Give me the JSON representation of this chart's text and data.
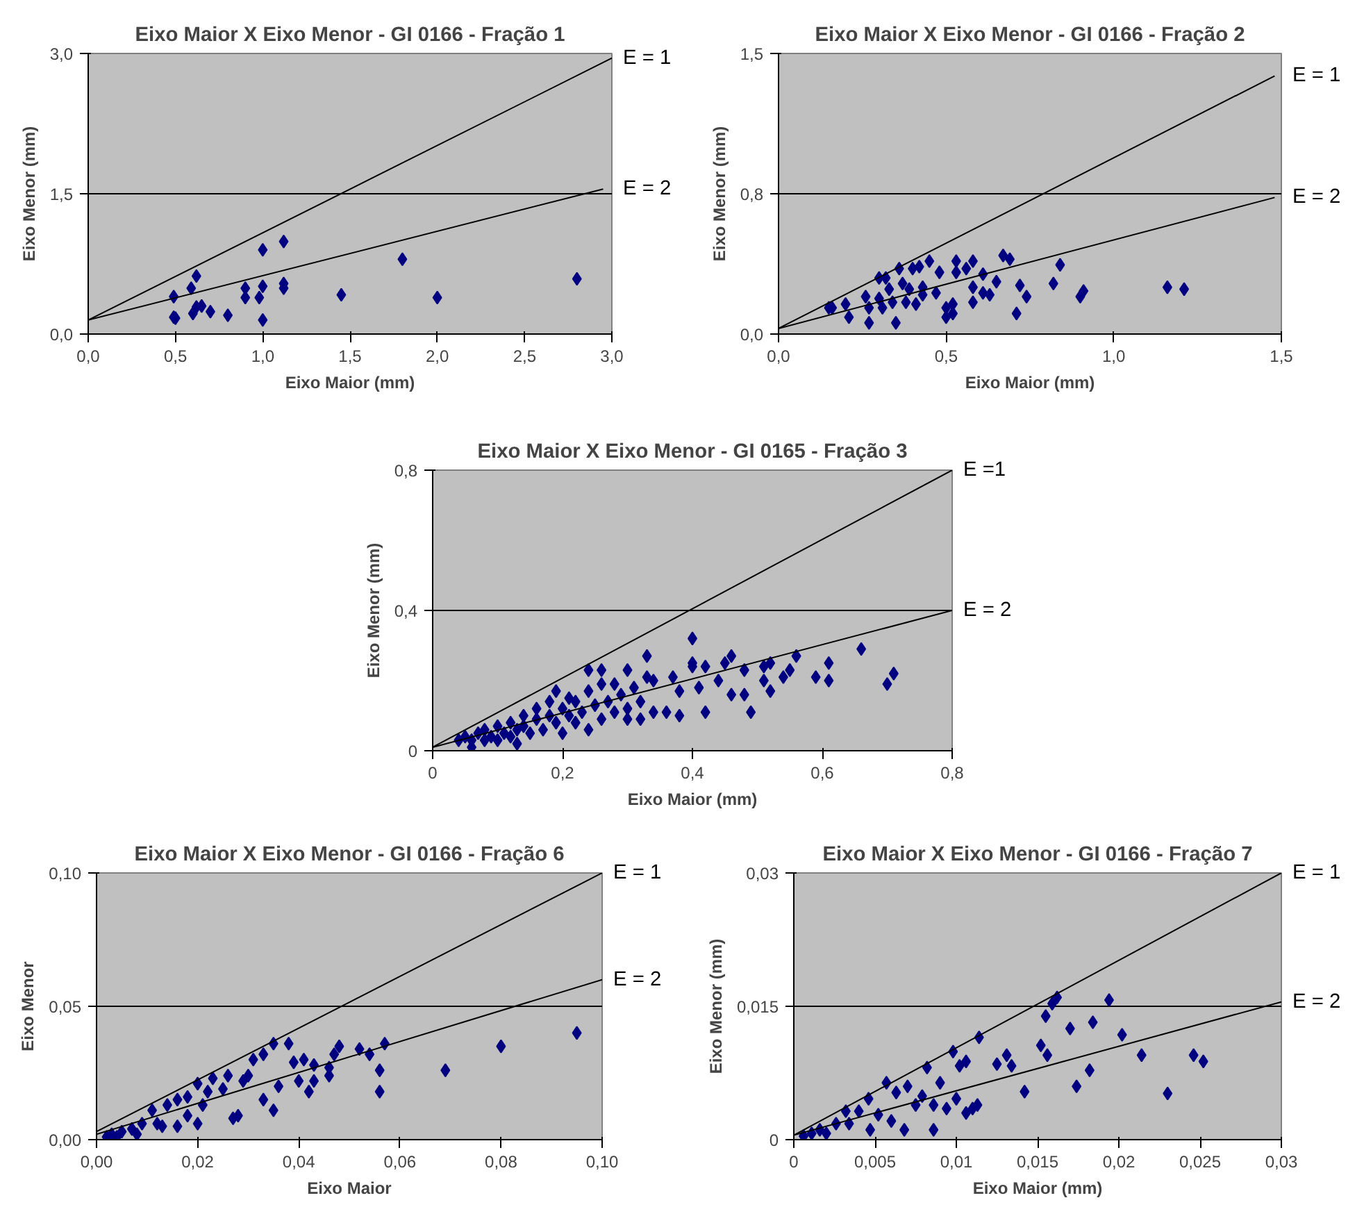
{
  "chart_data": [
    {
      "type": "scatter",
      "title": "Eixo Maior X Eixo Menor - GI 0166 - Fração 1",
      "xlabel": "Eixo Maior (mm)",
      "ylabel": "Eixo Menor (mm)",
      "xlim": [
        0,
        3.0
      ],
      "ylim": [
        0,
        3.0
      ],
      "xticks": [
        {
          "value": 0,
          "label": "0,0"
        },
        {
          "value": 0.5,
          "label": "0,5"
        },
        {
          "value": 1.0,
          "label": "1,0"
        },
        {
          "value": 1.5,
          "label": "1,5"
        },
        {
          "value": 2.0,
          "label": "2,0"
        },
        {
          "value": 2.5,
          "label": "2,5"
        },
        {
          "value": 3.0,
          "label": "3,0"
        }
      ],
      "yticks": [
        {
          "value": 0,
          "label": "0,0"
        },
        {
          "value": 1.5,
          "label": "1,5"
        },
        {
          "value": 3.0,
          "label": "3,0"
        }
      ],
      "grid": "y",
      "marker": "diamond",
      "series": [
        {
          "color": "#000080",
          "x": [
            0.49,
            0.49,
            0.5,
            0.59,
            0.62,
            0.6,
            0.62,
            0.65,
            0.7,
            0.8,
            0.9,
            0.9,
            0.98,
            1.0,
            1.0,
            1.0,
            1.12,
            1.12,
            1.12,
            1.45,
            1.8,
            2.0,
            2.8
          ],
          "values": [
            0.4,
            0.18,
            0.17,
            0.49,
            0.62,
            0.22,
            0.29,
            0.3,
            0.24,
            0.2,
            0.49,
            0.39,
            0.39,
            0.51,
            0.9,
            0.15,
            0.99,
            0.54,
            0.49,
            0.42,
            0.8,
            0.39,
            0.59
          ]
        },
        {
          "type": "line",
          "marker": "none",
          "name": "E = 1",
          "color": "#000000",
          "x": [
            0,
            3.0
          ],
          "values": [
            0.15,
            2.95
          ]
        },
        {
          "type": "line",
          "marker": "none",
          "name": "E = 2",
          "color": "#000000",
          "x": [
            0,
            2.95
          ],
          "values": [
            0.15,
            1.55
          ]
        }
      ]
    },
    {
      "type": "scatter",
      "title": "Eixo Maior X Eixo Menor - GI 0166 - Fração 2",
      "xlabel": "Eixo Maior (mm)",
      "ylabel": "Eixo Menor (mm)",
      "xlim": [
        0,
        1.5
      ],
      "ylim": [
        0,
        1.5
      ],
      "xticks": [
        {
          "value": 0,
          "label": "0,0"
        },
        {
          "value": 0.5,
          "label": "0,5"
        },
        {
          "value": 1.0,
          "label": "1,0"
        },
        {
          "value": 1.5,
          "label": "1,5"
        }
      ],
      "yticks": [
        {
          "value": 0,
          "label": "0,0"
        },
        {
          "value": 0.75,
          "label": "0,8"
        },
        {
          "value": 1.5,
          "label": "1,5"
        }
      ],
      "grid": "y",
      "marker": "diamond",
      "series": [
        {
          "color": "#000080",
          "x": [
            0.15,
            0.16,
            0.2,
            0.21,
            0.26,
            0.27,
            0.27,
            0.3,
            0.3,
            0.31,
            0.32,
            0.33,
            0.34,
            0.35,
            0.36,
            0.37,
            0.38,
            0.39,
            0.4,
            0.41,
            0.42,
            0.43,
            0.43,
            0.45,
            0.47,
            0.48,
            0.5,
            0.5,
            0.52,
            0.52,
            0.53,
            0.53,
            0.56,
            0.58,
            0.58,
            0.58,
            0.61,
            0.61,
            0.63,
            0.65,
            0.67,
            0.69,
            0.71,
            0.72,
            0.74,
            0.82,
            0.84,
            0.9,
            0.91,
            1.16,
            1.21
          ],
          "values": [
            0.14,
            0.14,
            0.16,
            0.09,
            0.2,
            0.06,
            0.14,
            0.3,
            0.19,
            0.14,
            0.3,
            0.24,
            0.17,
            0.06,
            0.35,
            0.27,
            0.17,
            0.24,
            0.35,
            0.16,
            0.36,
            0.25,
            0.21,
            0.39,
            0.22,
            0.33,
            0.14,
            0.09,
            0.11,
            0.16,
            0.39,
            0.33,
            0.35,
            0.25,
            0.39,
            0.17,
            0.32,
            0.22,
            0.21,
            0.28,
            0.42,
            0.4,
            0.11,
            0.26,
            0.2,
            0.27,
            0.37,
            0.2,
            0.23,
            0.25,
            0.24
          ]
        },
        {
          "type": "line",
          "marker": "none",
          "name": "E = 1",
          "color": "#000000",
          "x": [
            0,
            1.48
          ],
          "values": [
            0.03,
            1.38
          ]
        },
        {
          "type": "line",
          "marker": "none",
          "name": "E = 2",
          "color": "#000000",
          "x": [
            0,
            1.48
          ],
          "values": [
            0.03,
            0.73
          ]
        }
      ]
    },
    {
      "type": "scatter",
      "title": "Eixo Maior X Eixo Menor - GI 0165 - Fração 3",
      "xlabel": "Eixo Maior (mm)",
      "ylabel": "Eixo Menor (mm)",
      "xlim": [
        0,
        0.8
      ],
      "ylim": [
        0,
        0.8
      ],
      "xticks": [
        {
          "value": 0,
          "label": "0"
        },
        {
          "value": 0.2,
          "label": "0,2"
        },
        {
          "value": 0.4,
          "label": "0,4"
        },
        {
          "value": 0.6,
          "label": "0,6"
        },
        {
          "value": 0.8,
          "label": "0,8"
        }
      ],
      "yticks": [
        {
          "value": 0,
          "label": "0"
        },
        {
          "value": 0.4,
          "label": "0,4"
        },
        {
          "value": 0.8,
          "label": "0,8"
        }
      ],
      "grid": "y",
      "marker": "diamond",
      "series": [
        {
          "color": "#000080",
          "x": [
            0.04,
            0.05,
            0.06,
            0.06,
            0.07,
            0.08,
            0.08,
            0.09,
            0.1,
            0.1,
            0.11,
            0.12,
            0.12,
            0.13,
            0.13,
            0.14,
            0.14,
            0.15,
            0.16,
            0.16,
            0.17,
            0.18,
            0.18,
            0.19,
            0.19,
            0.2,
            0.2,
            0.21,
            0.21,
            0.22,
            0.22,
            0.23,
            0.24,
            0.24,
            0.25,
            0.26,
            0.26,
            0.27,
            0.28,
            0.28,
            0.29,
            0.3,
            0.31,
            0.32,
            0.4,
            0.24,
            0.26,
            0.3,
            0.33,
            0.33,
            0.34,
            0.3,
            0.32,
            0.34,
            0.36,
            0.38,
            0.38,
            0.37,
            0.4,
            0.4,
            0.42,
            0.42,
            0.41,
            0.44,
            0.45,
            0.46,
            0.46,
            0.48,
            0.48,
            0.49,
            0.51,
            0.52,
            0.51,
            0.52,
            0.54,
            0.56,
            0.59,
            0.61,
            0.61,
            0.66,
            0.7,
            0.71,
            0.55
          ],
          "values": [
            0.03,
            0.04,
            0.01,
            0.03,
            0.05,
            0.03,
            0.06,
            0.04,
            0.07,
            0.03,
            0.05,
            0.08,
            0.04,
            0.06,
            0.02,
            0.1,
            0.07,
            0.05,
            0.09,
            0.12,
            0.06,
            0.1,
            0.14,
            0.08,
            0.17,
            0.12,
            0.05,
            0.15,
            0.1,
            0.08,
            0.14,
            0.11,
            0.06,
            0.17,
            0.13,
            0.09,
            0.19,
            0.14,
            0.11,
            0.19,
            0.16,
            0.12,
            0.18,
            0.14,
            0.32,
            0.23,
            0.23,
            0.23,
            0.27,
            0.21,
            0.2,
            0.09,
            0.09,
            0.11,
            0.11,
            0.1,
            0.17,
            0.21,
            0.24,
            0.25,
            0.24,
            0.11,
            0.18,
            0.2,
            0.25,
            0.27,
            0.16,
            0.16,
            0.23,
            0.11,
            0.24,
            0.25,
            0.2,
            0.17,
            0.21,
            0.27,
            0.21,
            0.25,
            0.2,
            0.29,
            0.19,
            0.22,
            0.23
          ]
        },
        {
          "type": "line",
          "marker": "none",
          "name": "E =1",
          "color": "#000000",
          "x": [
            0,
            0.8
          ],
          "values": [
            0.01,
            0.8
          ]
        },
        {
          "type": "line",
          "marker": "none",
          "name": "E = 2",
          "color": "#000000",
          "x": [
            0,
            0.8
          ],
          "values": [
            0.01,
            0.4
          ]
        }
      ]
    },
    {
      "type": "scatter",
      "title": "Eixo Maior X Eixo Menor - GI 0166 - Fração 6",
      "xlabel": "Eixo Maior",
      "ylabel": "Eixo Menor",
      "xlim": [
        0,
        0.1
      ],
      "ylim": [
        0,
        0.1
      ],
      "xticks": [
        {
          "value": 0,
          "label": "0,00"
        },
        {
          "value": 0.02,
          "label": "0,02"
        },
        {
          "value": 0.04,
          "label": "0,04"
        },
        {
          "value": 0.06,
          "label": "0,06"
        },
        {
          "value": 0.08,
          "label": "0,08"
        },
        {
          "value": 0.1,
          "label": "0,10"
        }
      ],
      "yticks": [
        {
          "value": 0,
          "label": "0,00"
        },
        {
          "value": 0.05,
          "label": "0,05"
        },
        {
          "value": 0.1,
          "label": "0,10"
        }
      ],
      "grid": "y",
      "marker": "diamond",
      "series": [
        {
          "color": "#000080",
          "x": [
            0.095,
            0.08,
            0.069,
            0.057,
            0.056,
            0.056,
            0.054,
            0.052,
            0.048,
            0.047,
            0.046,
            0.046,
            0.043,
            0.042,
            0.043,
            0.04,
            0.041,
            0.038,
            0.039,
            0.035,
            0.036,
            0.035,
            0.033,
            0.033,
            0.031,
            0.03,
            0.029,
            0.028,
            0.027,
            0.026,
            0.025,
            0.023,
            0.021,
            0.02,
            0.02,
            0.018,
            0.016,
            0.016,
            0.014,
            0.013,
            0.011,
            0.009,
            0.007,
            0.005,
            0.003,
            0.002,
            0.004,
            0.008,
            0.012,
            0.018,
            0.022
          ],
          "values": [
            0.04,
            0.035,
            0.026,
            0.036,
            0.026,
            0.018,
            0.032,
            0.034,
            0.035,
            0.032,
            0.024,
            0.027,
            0.028,
            0.018,
            0.022,
            0.022,
            0.03,
            0.036,
            0.029,
            0.036,
            0.02,
            0.011,
            0.032,
            0.015,
            0.03,
            0.024,
            0.022,
            0.009,
            0.008,
            0.024,
            0.019,
            0.023,
            0.013,
            0.021,
            0.006,
            0.016,
            0.015,
            0.005,
            0.013,
            0.005,
            0.011,
            0.006,
            0.004,
            0.003,
            0.002,
            0.001,
            0.001,
            0.002,
            0.006,
            0.009,
            0.018
          ]
        },
        {
          "type": "line",
          "marker": "none",
          "name": "E = 1",
          "color": "#000000",
          "x": [
            0,
            0.1
          ],
          "values": [
            0.003,
            0.1
          ]
        },
        {
          "type": "line",
          "marker": "none",
          "name": "E = 2",
          "color": "#000000",
          "x": [
            0,
            0.1
          ],
          "values": [
            0.002,
            0.06
          ]
        }
      ]
    },
    {
      "type": "scatter",
      "title": "Eixo Maior X Eixo Menor - GI 0166 - Fração 7",
      "xlabel": "Eixo Maior (mm)",
      "ylabel": "Eixo Menor (mm)",
      "xlim": [
        0,
        0.03
      ],
      "ylim": [
        0,
        0.03
      ],
      "xticks": [
        {
          "value": 0,
          "label": "0"
        },
        {
          "value": 0.005,
          "label": "0,005"
        },
        {
          "value": 0.01,
          "label": "0,01"
        },
        {
          "value": 0.015,
          "label": "0,015"
        },
        {
          "value": 0.02,
          "label": "0,02"
        },
        {
          "value": 0.025,
          "label": "0,025"
        },
        {
          "value": 0.03,
          "label": "0,03"
        }
      ],
      "yticks": [
        {
          "value": 0,
          "label": "0"
        },
        {
          "value": 0.015,
          "label": "0,015"
        },
        {
          "value": 0.03,
          "label": "0,03"
        }
      ],
      "grid": "y",
      "marker": "diamond",
      "series": [
        {
          "color": "#000080",
          "x": [
            0.0246,
            0.0252,
            0.023,
            0.0214,
            0.0202,
            0.0194,
            0.0184,
            0.0182,
            0.0174,
            0.017,
            0.0162,
            0.0159,
            0.0156,
            0.0155,
            0.0152,
            0.0142,
            0.0134,
            0.0131,
            0.0125,
            0.0114,
            0.0113,
            0.011,
            0.0106,
            0.0106,
            0.0102,
            0.01,
            0.0098,
            0.0094,
            0.009,
            0.0086,
            0.0086,
            0.0082,
            0.0079,
            0.0075,
            0.007,
            0.0068,
            0.0063,
            0.006,
            0.0057,
            0.0052,
            0.0047,
            0.0046,
            0.004,
            0.0034,
            0.0032,
            0.0026,
            0.002,
            0.0016,
            0.0011,
            0.0006
          ],
          "values": [
            0.0095,
            0.0088,
            0.0052,
            0.0095,
            0.0118,
            0.0157,
            0.0132,
            0.0078,
            0.006,
            0.0125,
            0.016,
            0.0153,
            0.0095,
            0.0139,
            0.0106,
            0.0054,
            0.0083,
            0.0095,
            0.0085,
            0.0115,
            0.0039,
            0.0035,
            0.003,
            0.0088,
            0.0083,
            0.0046,
            0.0099,
            0.0035,
            0.0064,
            0.0011,
            0.0039,
            0.0081,
            0.0049,
            0.0039,
            0.006,
            0.0011,
            0.0053,
            0.0021,
            0.0064,
            0.0028,
            0.0011,
            0.0046,
            0.0032,
            0.0018,
            0.0032,
            0.0018,
            0.0007,
            0.0011,
            0.0007,
            0.0004
          ]
        },
        {
          "type": "line",
          "marker": "none",
          "name": "E = 1",
          "color": "#000000",
          "x": [
            0,
            0.03
          ],
          "values": [
            0.0005,
            0.03
          ]
        },
        {
          "type": "line",
          "marker": "none",
          "name": "E = 2",
          "color": "#000000",
          "x": [
            0,
            0.03
          ],
          "values": [
            0.0005,
            0.0155
          ]
        }
      ]
    }
  ]
}
